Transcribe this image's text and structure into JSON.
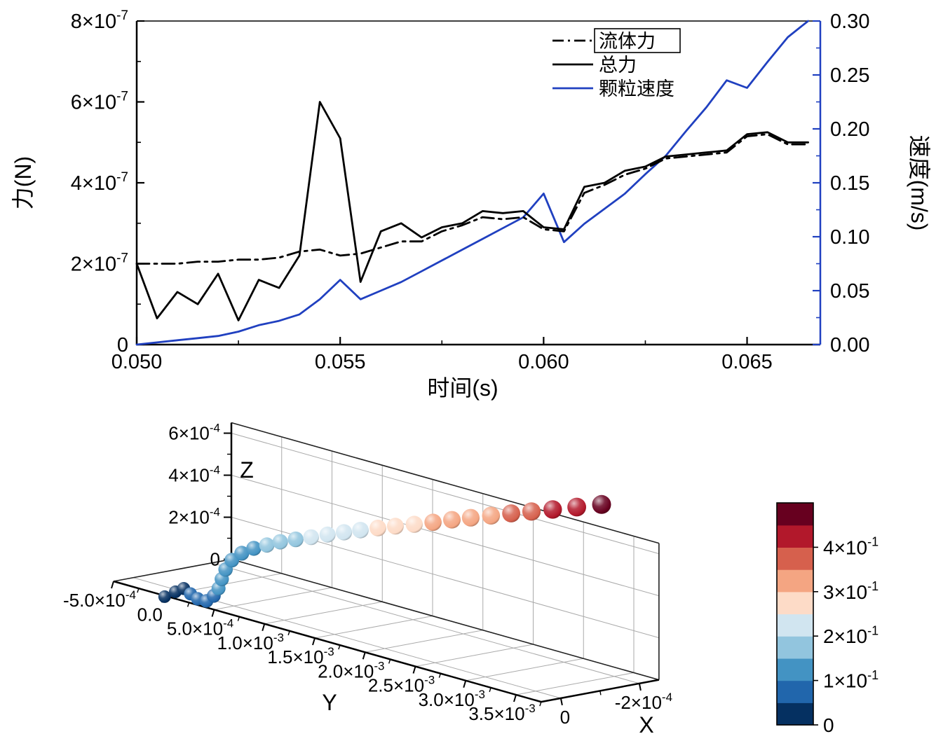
{
  "page": {
    "background": "#ffffff"
  },
  "chart_data": [
    {
      "id": "force-velocity-time",
      "type": "line",
      "title": "",
      "xlabel": "时间(s)",
      "ylabel_left": "力(N)",
      "ylabel_right": "速度(m/s)",
      "x_range": [
        0.05,
        0.0668
      ],
      "y_left_range_N": [
        0,
        8e-07
      ],
      "y_right_range_ms": [
        0,
        0.3
      ],
      "grid": false,
      "legend_position": "top-right",
      "x_tick_values": [
        0.05,
        0.055,
        0.06,
        0.065
      ],
      "x_tick_labels": [
        "0.050",
        "0.055",
        "0.060",
        "0.065"
      ],
      "y_left_tick_values": [
        0,
        2e-07,
        4e-07,
        6e-07,
        8e-07
      ],
      "y_left_tick_labels": [
        "0",
        "2×10^-7",
        "4×10^-7",
        "6×10^-7",
        "8×10^-7"
      ],
      "y_right_tick_values": [
        0,
        0.05,
        0.1,
        0.15,
        0.2,
        0.25,
        0.3
      ],
      "y_right_tick_labels": [
        "0.00",
        "0.05",
        "0.10",
        "0.15",
        "0.20",
        "0.25",
        "0.30"
      ],
      "axis_colors": {
        "left": "#000000",
        "bottom": "#000000",
        "right": "#2040c0"
      },
      "x": [
        0.05,
        0.0505,
        0.051,
        0.0515,
        0.052,
        0.0525,
        0.053,
        0.0535,
        0.054,
        0.0545,
        0.055,
        0.0555,
        0.056,
        0.0565,
        0.057,
        0.0575,
        0.058,
        0.0585,
        0.059,
        0.0595,
        0.06,
        0.0605,
        0.061,
        0.0615,
        0.062,
        0.0625,
        0.063,
        0.0635,
        0.064,
        0.0645,
        0.065,
        0.0655,
        0.066,
        0.0665
      ],
      "series": [
        {
          "name": "流体力",
          "axis": "left",
          "color": "#000000",
          "line_style": "dashdot",
          "values": [
            2e-07,
            2e-07,
            2e-07,
            2.05e-07,
            2.05e-07,
            2.1e-07,
            2.1e-07,
            2.15e-07,
            2.3e-07,
            2.35e-07,
            2.2e-07,
            2.25e-07,
            2.4e-07,
            2.55e-07,
            2.55e-07,
            2.8e-07,
            2.95e-07,
            3.15e-07,
            3.1e-07,
            3.15e-07,
            2.85e-07,
            2.8e-07,
            3.75e-07,
            3.95e-07,
            4.2e-07,
            4.35e-07,
            4.6e-07,
            4.65e-07,
            4.7e-07,
            4.75e-07,
            5.15e-07,
            5.2e-07,
            4.95e-07,
            4.95e-07
          ]
        },
        {
          "name": "总力",
          "axis": "left",
          "color": "#000000",
          "line_style": "solid",
          "values": [
            2e-07,
            6.5e-08,
            1.3e-07,
            1e-07,
            1.75e-07,
            6e-08,
            1.6e-07,
            1.4e-07,
            2.2e-07,
            6e-07,
            5.1e-07,
            1.55e-07,
            2.8e-07,
            3e-07,
            2.65e-07,
            2.9e-07,
            3e-07,
            3.3e-07,
            3.25e-07,
            3.3e-07,
            2.9e-07,
            2.85e-07,
            3.9e-07,
            4e-07,
            4.3e-07,
            4.4e-07,
            4.65e-07,
            4.7e-07,
            4.75e-07,
            4.8e-07,
            5.2e-07,
            5.25e-07,
            5e-07,
            5e-07
          ]
        },
        {
          "name": "颗粒速度",
          "axis": "right",
          "color": "#2040c0",
          "line_style": "solid",
          "values": [
            0,
            0.002,
            0.004,
            0.006,
            0.008,
            0.012,
            0.018,
            0.022,
            0.028,
            0.042,
            0.06,
            0.042,
            0.05,
            0.058,
            0.068,
            0.078,
            0.088,
            0.098,
            0.108,
            0.118,
            0.14,
            0.095,
            0.112,
            0.126,
            0.14,
            0.158,
            0.175,
            0.198,
            0.22,
            0.245,
            0.238,
            0.262,
            0.285,
            0.3
          ]
        }
      ]
    },
    {
      "id": "particle-trajectory-3d",
      "type": "scatter",
      "projection": "3d",
      "xlabel": "X",
      "ylabel": "Y",
      "zlabel": "Z",
      "x_tick_values": [
        0,
        -0.0002
      ],
      "x_tick_labels": [
        "0",
        "-2×10^-4"
      ],
      "y_tick_values": [
        -0.0005,
        0,
        0.0005,
        0.001,
        0.0015,
        0.002,
        0.0025,
        0.003,
        0.0035
      ],
      "y_tick_labels": [
        "-5.0×10^-4",
        "0.0",
        "5.0×10^-4",
        "1.0×10^-3",
        "1.5×10^-3",
        "2.0×10^-3",
        "2.5×10^-3",
        "3.0×10^-3",
        "3.5×10^-3"
      ],
      "z_tick_values": [
        0.0006,
        0.0004,
        0.0002,
        0
      ],
      "z_tick_labels": [
        "6×10^-4",
        "4×10^-4",
        "2×10^-4",
        "0"
      ],
      "colorbar": {
        "label": "",
        "range": [
          0,
          0.5
        ],
        "tick_values": [
          0,
          0.1,
          0.2,
          0.3,
          0.4
        ],
        "tick_labels": [
          "0",
          "1×10^-1",
          "2×10^-1",
          "3×10^-1",
          "4×10^-1"
        ],
        "colors": [
          "#053061",
          "#2166ac",
          "#4393c3",
          "#92c5de",
          "#d1e5f0",
          "#fddbc7",
          "#f4a582",
          "#d6604d",
          "#b2182b",
          "#67001f"
        ]
      },
      "points_format": [
        "x_m",
        "y_m",
        "z_m",
        "velocity_ms"
      ],
      "points": [
        [
          2e-05,
          -0.00011,
          -3.1e-05,
          0.015
        ],
        [
          1.8e-05,
          -1.1e-05,
          4.8e-06,
          0.03
        ],
        [
          1.5e-05,
          6e-05,
          2.9e-05,
          0.045
        ],
        [
          1.3e-05,
          0.00012,
          1.1e-05,
          0.06
        ],
        [
          1e-05,
          0.00018,
          -5.5e-06,
          0.07
        ],
        [
          8e-06,
          0.00026,
          -5.5e-06,
          0.08
        ],
        [
          5e-06,
          0.00032,
          2.6e-05,
          0.09
        ],
        [
          3e-06,
          0.00036,
          6.6e-05,
          0.1
        ],
        [
          0,
          0.00038,
          0.000112,
          0.11
        ],
        [
          -2e-06,
          0.00041,
          0.000161,
          0.12
        ],
        [
          -5e-06,
          0.00046,
          0.000211,
          0.13
        ],
        [
          -1e-05,
          0.00054,
          0.000253,
          0.14
        ],
        [
          -1.5e-05,
          0.00064,
          0.000288,
          0.15
        ],
        [
          -2e-05,
          0.00075,
          0.000317,
          0.16
        ],
        [
          -2.6e-05,
          0.00086,
          0.000345,
          0.17
        ],
        [
          -3.2e-05,
          0.00099,
          0.000372,
          0.185
        ],
        [
          -3.8e-05,
          0.00112,
          0.000398,
          0.2
        ],
        [
          -4.4e-05,
          0.00126,
          0.000427,
          0.215
        ],
        [
          -5e-05,
          0.0014,
          0.000455,
          0.23
        ],
        [
          -5.6e-05,
          0.00154,
          0.000482,
          0.245
        ],
        [
          -6.2e-05,
          0.00169,
          0.00051,
          0.26
        ],
        [
          -6.8e-05,
          0.00184,
          0.000537,
          0.275
        ],
        [
          -7.5e-05,
          0.002,
          0.000565,
          0.29
        ],
        [
          -8.2e-05,
          0.00216,
          0.000594,
          0.305
        ],
        [
          -8.9e-05,
          0.00232,
          0.000625,
          0.32
        ],
        [
          -9.6e-05,
          0.00248,
          0.000654,
          0.335
        ],
        [
          -0.000104,
          0.00265,
          0.000684,
          0.35
        ],
        [
          -0.000112,
          0.00282,
          0.000715,
          0.37
        ],
        [
          -0.00012,
          0.00299,
          0.000744,
          0.39
        ],
        [
          -0.000128,
          0.00317,
          0.000775,
          0.41
        ],
        [
          -0.000138,
          0.00337,
          0.00081,
          0.44
        ],
        [
          -0.00015,
          0.00357,
          0.000845,
          0.47
        ]
      ]
    }
  ]
}
